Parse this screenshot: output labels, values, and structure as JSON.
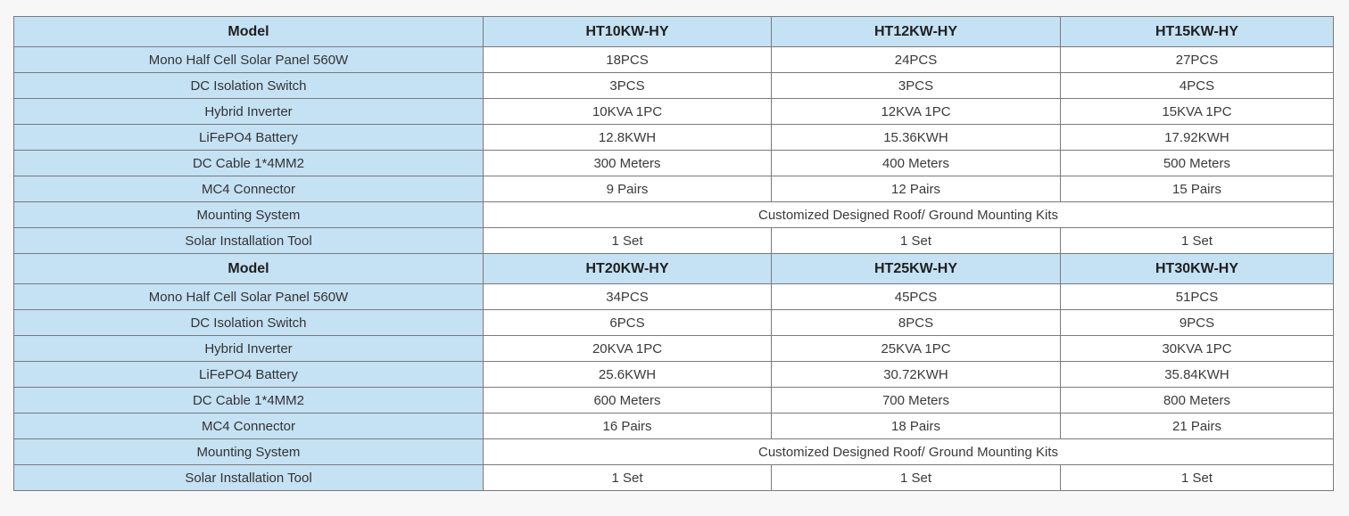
{
  "page": {
    "background_color": "#f7f7f7"
  },
  "table": {
    "colors": {
      "header_bg": "#c5e1f4",
      "label_bg": "#c5e1f4",
      "value_bg": "#ffffff",
      "border": "#7a7a7a",
      "header_text": "#1f1f1f",
      "body_text": "#3a3a3a"
    },
    "sections": [
      {
        "header": {
          "label": "Model",
          "models": [
            "HT10KW-HY",
            "HT12KW-HY",
            "HT15KW-HY"
          ]
        },
        "rows": [
          {
            "label": "Mono Half Cell Solar Panel 560W",
            "values": [
              "18PCS",
              "24PCS",
              "27PCS"
            ]
          },
          {
            "label": "DC Isolation Switch",
            "values": [
              "3PCS",
              "3PCS",
              "4PCS"
            ]
          },
          {
            "label": "Hybrid Inverter",
            "values": [
              "10KVA 1PC",
              "12KVA 1PC",
              "15KVA 1PC"
            ]
          },
          {
            "label": "LiFePO4 Battery",
            "values": [
              "12.8KWH",
              "15.36KWH",
              "17.92KWH"
            ]
          },
          {
            "label": "DC Cable 1*4MM2",
            "values": [
              "300 Meters",
              "400 Meters",
              "500 Meters"
            ]
          },
          {
            "label": "MC4 Connector",
            "values": [
              "9 Pairs",
              "12 Pairs",
              "15 Pairs"
            ]
          },
          {
            "label": "Mounting System",
            "span": true,
            "values": [
              "Customized Designed Roof/ Ground Mounting Kits"
            ]
          },
          {
            "label": "Solar Installation Tool",
            "values": [
              "1 Set",
              "1 Set",
              "1 Set"
            ]
          }
        ]
      },
      {
        "header": {
          "label": "Model",
          "models": [
            "HT20KW-HY",
            "HT25KW-HY",
            "HT30KW-HY"
          ]
        },
        "rows": [
          {
            "label": "Mono Half Cell Solar Panel 560W",
            "values": [
              "34PCS",
              "45PCS",
              "51PCS"
            ]
          },
          {
            "label": "DC Isolation Switch",
            "values": [
              "6PCS",
              "8PCS",
              "9PCS"
            ]
          },
          {
            "label": "Hybrid Inverter",
            "values": [
              "20KVA 1PC",
              "25KVA 1PC",
              "30KVA 1PC"
            ]
          },
          {
            "label": "LiFePO4 Battery",
            "values": [
              "25.6KWH",
              "30.72KWH",
              "35.84KWH"
            ]
          },
          {
            "label": "DC Cable 1*4MM2",
            "values": [
              "600 Meters",
              "700 Meters",
              "800 Meters"
            ]
          },
          {
            "label": "MC4 Connector",
            "values": [
              "16 Pairs",
              "18 Pairs",
              "21 Pairs"
            ]
          },
          {
            "label": "Mounting System",
            "span": true,
            "values": [
              "Customized Designed Roof/ Ground Mounting Kits"
            ]
          },
          {
            "label": "Solar Installation Tool",
            "values": [
              "1 Set",
              "1 Set",
              "1 Set"
            ]
          }
        ]
      }
    ]
  }
}
